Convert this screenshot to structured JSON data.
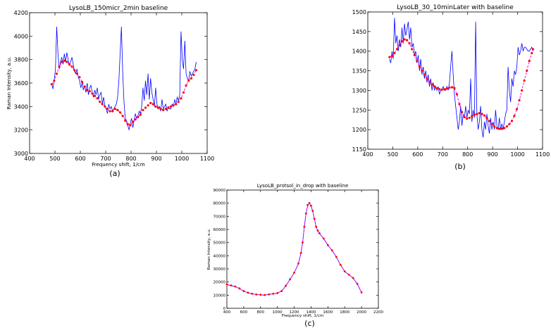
{
  "chart_data": [
    {
      "id": "a",
      "type": "line",
      "title": "LysoLB_150micr_2min baseline",
      "xlabel": "Frequency shift, 1/cm",
      "ylabel": "Raman Intensity, a.u.",
      "caption": "(a)",
      "xlim": [
        400,
        1100
      ],
      "ylim": [
        3000,
        4200
      ],
      "xticks": [
        "400",
        "500",
        "600",
        "700",
        "800",
        "900",
        "1000",
        "1100"
      ],
      "yticks": [
        "3000",
        "3200",
        "3400",
        "3600",
        "3800",
        "4000",
        "4200"
      ],
      "colors": {
        "signal": "#0000ff",
        "baseline": "#ff00ff",
        "markers": "#ff0000"
      },
      "series": [
        {
          "role": "signal",
          "x": [
            487,
            492,
            497,
            502,
            507,
            512,
            517,
            522,
            527,
            532,
            537,
            542,
            547,
            552,
            557,
            562,
            567,
            572,
            577,
            582,
            587,
            592,
            597,
            602,
            607,
            612,
            617,
            622,
            627,
            632,
            637,
            642,
            647,
            652,
            657,
            662,
            667,
            672,
            677,
            682,
            687,
            692,
            697,
            702,
            707,
            712,
            717,
            722,
            727,
            732,
            737,
            742,
            747,
            752,
            757,
            762,
            767,
            772,
            777,
            782,
            787,
            792,
            797,
            802,
            807,
            812,
            817,
            822,
            827,
            832,
            837,
            842,
            847,
            852,
            857,
            862,
            867,
            872,
            877,
            882,
            887,
            892,
            897,
            902,
            907,
            912,
            917,
            922,
            927,
            932,
            937,
            942,
            947,
            952,
            957,
            962,
            967,
            972,
            977,
            982,
            987,
            992,
            997,
            1002,
            1007,
            1012,
            1017,
            1022,
            1027,
            1032,
            1037,
            1042,
            1047,
            1052,
            1057
          ],
          "y": [
            3600,
            3550,
            3620,
            3720,
            4080,
            3850,
            3720,
            3780,
            3820,
            3760,
            3850,
            3780,
            3860,
            3800,
            3750,
            3780,
            3820,
            3760,
            3700,
            3680,
            3720,
            3650,
            3620,
            3560,
            3600,
            3540,
            3580,
            3520,
            3600,
            3500,
            3560,
            3580,
            3520,
            3480,
            3540,
            3500,
            3560,
            3460,
            3500,
            3520,
            3420,
            3480,
            3400,
            3380,
            3340,
            3420,
            3380,
            3400,
            3360,
            3380,
            3400,
            3420,
            3480,
            3620,
            3850,
            4080,
            3700,
            3450,
            3300,
            3280,
            3240,
            3200,
            3260,
            3300,
            3220,
            3280,
            3340,
            3300,
            3320,
            3360,
            3340,
            3400,
            3560,
            3450,
            3620,
            3500,
            3680,
            3460,
            3640,
            3520,
            3460,
            3400,
            3560,
            3420,
            3380,
            3400,
            3360,
            3460,
            3380,
            3400,
            3420,
            3360,
            3400,
            3380,
            3380,
            3420,
            3400,
            3460,
            3420,
            3480,
            3450,
            3500,
            4040,
            3800,
            3720,
            3960,
            3680,
            3640,
            3620,
            3700,
            3660,
            3680,
            3700,
            3720,
            3780
          ]
        },
        {
          "role": "baseline",
          "x": [
            487,
            497,
            507,
            517,
            527,
            537,
            547,
            557,
            567,
            577,
            587,
            597,
            607,
            617,
            627,
            637,
            647,
            657,
            667,
            677,
            687,
            697,
            707,
            717,
            727,
            737,
            747,
            757,
            767,
            777,
            787,
            797,
            807,
            817,
            827,
            837,
            847,
            857,
            867,
            877,
            887,
            897,
            907,
            917,
            927,
            937,
            947,
            957,
            967,
            977,
            987,
            997,
            1007,
            1017,
            1027,
            1037,
            1047,
            1057
          ],
          "y": [
            3590,
            3620,
            3680,
            3740,
            3780,
            3790,
            3780,
            3760,
            3740,
            3710,
            3680,
            3650,
            3610,
            3570,
            3540,
            3530,
            3510,
            3490,
            3470,
            3440,
            3420,
            3400,
            3380,
            3360,
            3360,
            3380,
            3370,
            3350,
            3320,
            3280,
            3250,
            3240,
            3270,
            3290,
            3310,
            3330,
            3370,
            3390,
            3410,
            3430,
            3420,
            3400,
            3390,
            3380,
            3370,
            3380,
            3390,
            3400,
            3410,
            3420,
            3440,
            3470,
            3520,
            3580,
            3620,
            3640,
            3670,
            3710
          ]
        }
      ]
    },
    {
      "id": "b",
      "type": "line",
      "title": "LysoLB_30_10minLater with baseline",
      "xlabel": "",
      "ylabel": "",
      "caption": "(b)",
      "xlim": [
        400,
        1100
      ],
      "ylim": [
        1150,
        1500
      ],
      "xticks": [
        "400",
        "500",
        "600",
        "700",
        "800",
        "900",
        "1000",
        "1100"
      ],
      "yticks": [
        "1150",
        "1200",
        "1250",
        "1300",
        "1350",
        "1400",
        "1450",
        "1500"
      ],
      "colors": {
        "signal": "#0000ff",
        "baseline": "#ff00ff",
        "markers": "#ff0000"
      },
      "series": [
        {
          "role": "signal",
          "x": [
            487,
            492,
            497,
            502,
            507,
            512,
            517,
            522,
            527,
            532,
            537,
            542,
            547,
            552,
            557,
            562,
            567,
            572,
            577,
            582,
            587,
            592,
            597,
            602,
            607,
            612,
            617,
            622,
            627,
            632,
            637,
            642,
            647,
            652,
            657,
            662,
            667,
            672,
            677,
            682,
            687,
            692,
            697,
            702,
            707,
            712,
            717,
            722,
            727,
            732,
            737,
            742,
            747,
            752,
            757,
            762,
            767,
            772,
            777,
            782,
            787,
            792,
            797,
            802,
            807,
            812,
            817,
            822,
            827,
            832,
            837,
            842,
            847,
            852,
            857,
            862,
            867,
            872,
            877,
            882,
            887,
            892,
            897,
            902,
            907,
            912,
            917,
            922,
            927,
            932,
            937,
            942,
            947,
            952,
            957,
            962,
            967,
            972,
            977,
            982,
            987,
            992,
            997,
            1002,
            1007,
            1012,
            1017,
            1022,
            1027,
            1032,
            1037,
            1042,
            1047,
            1052,
            1057,
            1062
          ],
          "y": [
            1380,
            1370,
            1400,
            1380,
            1485,
            1420,
            1440,
            1400,
            1430,
            1410,
            1460,
            1420,
            1470,
            1440,
            1455,
            1475,
            1430,
            1460,
            1410,
            1420,
            1390,
            1400,
            1370,
            1390,
            1350,
            1380,
            1340,
            1360,
            1330,
            1350,
            1320,
            1340,
            1310,
            1330,
            1300,
            1320,
            1300,
            1310,
            1300,
            1310,
            1290,
            1300,
            1300,
            1310,
            1300,
            1300,
            1310,
            1300,
            1320,
            1360,
            1400,
            1340,
            1290,
            1260,
            1230,
            1200,
            1220,
            1260,
            1210,
            1240,
            1230,
            1260,
            1230,
            1250,
            1240,
            1330,
            1220,
            1250,
            1230,
            1475,
            1240,
            1200,
            1220,
            1260,
            1200,
            1180,
            1220,
            1200,
            1240,
            1210,
            1190,
            1230,
            1200,
            1220,
            1200,
            1250,
            1210,
            1200,
            1230,
            1200,
            1215,
            1200,
            1220,
            1240,
            1250,
            1360,
            1300,
            1270,
            1330,
            1310,
            1350,
            1340,
            1360,
            1410,
            1390,
            1400,
            1420,
            1400,
            1410,
            1410,
            1405,
            1400,
            1400,
            1405,
            1410,
            1400
          ],
          "note": ""
        },
        {
          "role": "baseline",
          "x": [
            487,
            497,
            507,
            517,
            527,
            537,
            547,
            557,
            567,
            577,
            587,
            597,
            607,
            617,
            627,
            637,
            647,
            657,
            667,
            677,
            687,
            697,
            707,
            717,
            727,
            737,
            747,
            757,
            767,
            777,
            787,
            797,
            807,
            817,
            827,
            837,
            847,
            857,
            867,
            877,
            887,
            897,
            907,
            917,
            927,
            937,
            947,
            957,
            967,
            977,
            987,
            997,
            1007,
            1017,
            1027,
            1037,
            1047,
            1057,
            1062
          ],
          "y": [
            1385,
            1388,
            1395,
            1405,
            1415,
            1425,
            1430,
            1428,
            1420,
            1405,
            1390,
            1375,
            1362,
            1350,
            1340,
            1330,
            1322,
            1315,
            1310,
            1305,
            1303,
            1302,
            1303,
            1305,
            1307,
            1308,
            1306,
            1290,
            1265,
            1245,
            1232,
            1228,
            1230,
            1234,
            1238,
            1240,
            1242,
            1240,
            1236,
            1230,
            1222,
            1214,
            1208,
            1204,
            1202,
            1202,
            1204,
            1208,
            1214,
            1222,
            1235,
            1252,
            1275,
            1300,
            1325,
            1350,
            1375,
            1395,
            1405
          ]
        }
      ]
    },
    {
      "id": "c",
      "type": "line",
      "title": "LysoLB_protsol_in_drop with baseline",
      "xlabel": "Frequency shift, 1/cm",
      "ylabel": "Raman Intensity, a.u.",
      "caption": "(c)",
      "xlim": [
        400,
        2200
      ],
      "ylim": [
        0,
        90000
      ],
      "xticks": [
        "400",
        "600",
        "800",
        "1000",
        "1200",
        "1400",
        "1600",
        "1800",
        "2000",
        "2200"
      ],
      "yticks": [
        "0",
        "10000",
        "20000",
        "30000",
        "40000",
        "50000",
        "60000",
        "70000",
        "80000",
        "90000"
      ],
      "colors": {
        "signal": "#0000ff",
        "baseline": "#ff00ff",
        "markers": "#ff0000"
      },
      "series": [
        {
          "role": "signal",
          "x": [
            400,
            450,
            500,
            550,
            600,
            650,
            700,
            750,
            800,
            850,
            900,
            950,
            1000,
            1050,
            1100,
            1150,
            1200,
            1250,
            1280,
            1300,
            1320,
            1340,
            1360,
            1380,
            1400,
            1420,
            1440,
            1460,
            1480,
            1500,
            1550,
            1600,
            1650,
            1700,
            1750,
            1800,
            1850,
            1900,
            1950,
            2000
          ],
          "y": [
            18000,
            17200,
            16500,
            15000,
            13000,
            11800,
            11000,
            10500,
            10200,
            10000,
            10500,
            11000,
            11500,
            13000,
            17000,
            22000,
            27000,
            34000,
            42000,
            50000,
            62000,
            72000,
            78500,
            80000,
            78000,
            74000,
            68000,
            62000,
            59000,
            57000,
            53000,
            48000,
            44000,
            39000,
            33000,
            28000,
            25500,
            23000,
            18500,
            12000
          ]
        },
        {
          "role": "baseline",
          "x": [
            400,
            450,
            500,
            550,
            600,
            650,
            700,
            750,
            800,
            850,
            900,
            950,
            1000,
            1050,
            1100,
            1150,
            1200,
            1250,
            1280,
            1300,
            1320,
            1340,
            1360,
            1380,
            1400,
            1420,
            1440,
            1460,
            1480,
            1500,
            1550,
            1600,
            1650,
            1700,
            1750,
            1800,
            1850,
            1900,
            1950,
            2000
          ],
          "y": [
            18200,
            17400,
            16600,
            15100,
            13100,
            11900,
            11100,
            10500,
            10300,
            10100,
            10600,
            11100,
            11600,
            13100,
            17100,
            22100,
            27100,
            34100,
            42100,
            50100,
            62100,
            72100,
            78600,
            80100,
            78100,
            74100,
            68100,
            62100,
            59100,
            57100,
            53100,
            48100,
            44100,
            39100,
            33100,
            28100,
            25600,
            23100,
            18600,
            12100
          ]
        }
      ]
    }
  ]
}
